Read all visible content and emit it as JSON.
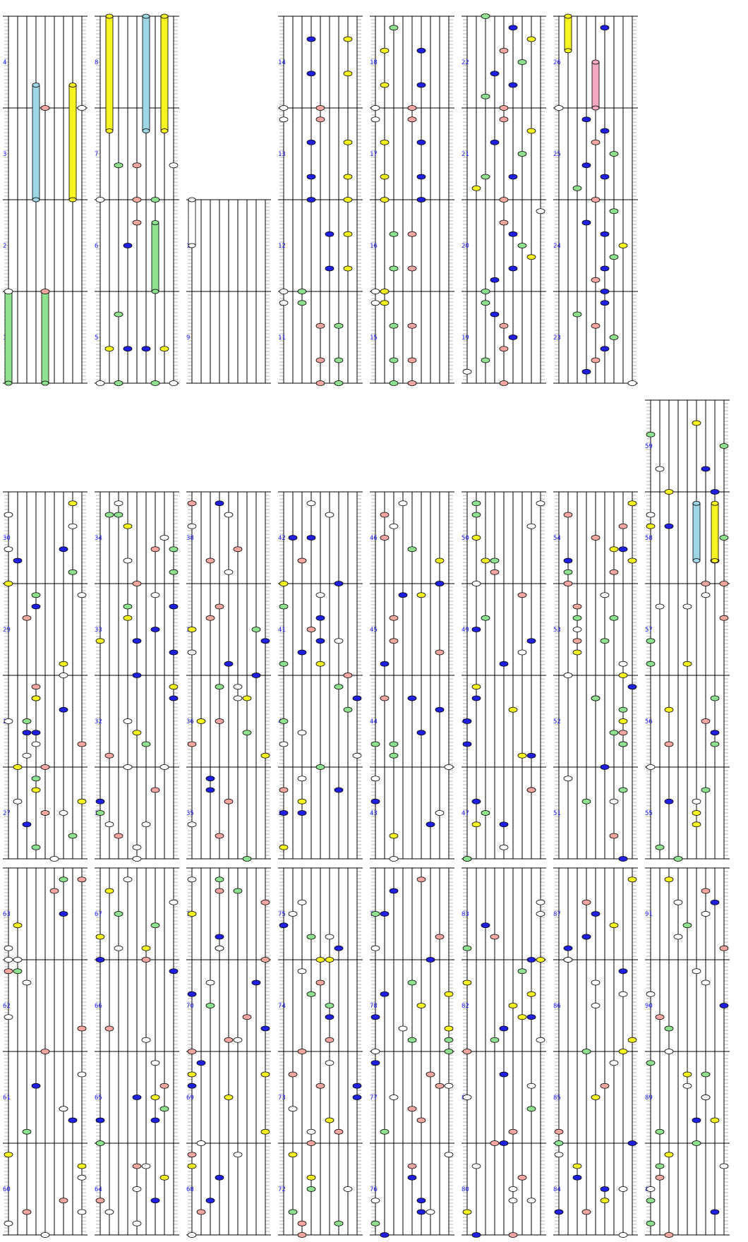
{
  "colors": {
    "background": "#ffffff",
    "string": "#000000",
    "ledger": "#b4b4b4",
    "bar_line": "#000000",
    "number": "#1a1aff",
    "white": "#ffffff",
    "pink": "#f4a6a0",
    "green": "#8fe08f",
    "blue": "#1f1fe0",
    "yellow": "#f7f31e",
    "cyan": "#9fd6e6",
    "lightpink": "#f4a8c0"
  },
  "icons": {
    "note": "oval-note-icon",
    "held": "bar-capsule-icon"
  },
  "lanes": 8,
  "steps": 8,
  "blocks": [
    {
      "bars": [
        "1",
        "2",
        "3",
        "4"
      ],
      "notes": [
        {
          "bar": 0,
          "lane": 0,
          "len": 8,
          "color": "green",
          "kind": "hold"
        },
        {
          "bar": 0,
          "lane": 4,
          "len": 8,
          "color": "green",
          "kind": "hold"
        },
        {
          "bar": 1,
          "lane": 0,
          "step": 0,
          "color": "white"
        },
        {
          "bar": 1,
          "lane": 4,
          "step": 0,
          "color": "pink"
        },
        {
          "bar": 2,
          "lane": 3,
          "len": 10,
          "color": "cyan",
          "kind": "hold"
        },
        {
          "bar": 2,
          "lane": 7,
          "len": 10,
          "color": "yellow",
          "kind": "hold"
        },
        {
          "bar": 3,
          "lane": 4,
          "step": 0,
          "color": "pink"
        },
        {
          "bar": 3,
          "lane": 8,
          "step": 0,
          "color": "white"
        }
      ]
    },
    {
      "bars": [
        "5",
        "6",
        "7",
        "8"
      ],
      "notes": [
        {
          "bar": 0,
          "lane": 0,
          "step": 0,
          "color": "white"
        },
        {
          "bar": 0,
          "lane": 2,
          "step": 0,
          "color": "green"
        },
        {
          "bar": 0,
          "lane": 6,
          "step": 0,
          "color": "green"
        },
        {
          "bar": 0,
          "lane": 8,
          "step": 0,
          "color": "white"
        },
        {
          "bar": 0,
          "lane": 1,
          "step": 3,
          "color": "yellow"
        },
        {
          "bar": 0,
          "lane": 3,
          "step": 3,
          "color": "blue"
        },
        {
          "bar": 0,
          "lane": 5,
          "step": 3,
          "color": "blue"
        },
        {
          "bar": 0,
          "lane": 7,
          "step": 3,
          "color": "yellow"
        },
        {
          "bar": 0,
          "lane": 2,
          "step": 6,
          "color": "green"
        },
        {
          "bar": 1,
          "lane": 6,
          "len": 6,
          "color": "green",
          "kind": "hold"
        },
        {
          "bar": 1,
          "lane": 3,
          "step": 4,
          "color": "blue"
        },
        {
          "bar": 1,
          "lane": 4,
          "step": 6,
          "color": "pink"
        },
        {
          "bar": 2,
          "lane": 0,
          "step": 0,
          "color": "white"
        },
        {
          "bar": 2,
          "lane": 4,
          "step": 0,
          "color": "pink"
        },
        {
          "bar": 2,
          "lane": 6,
          "step": 0,
          "color": "green"
        },
        {
          "bar": 2,
          "lane": 2,
          "step": 3,
          "color": "green"
        },
        {
          "bar": 2,
          "lane": 4,
          "step": 3,
          "color": "pink"
        },
        {
          "bar": 2,
          "lane": 8,
          "step": 3,
          "color": "white"
        },
        {
          "bar": 2,
          "lane": 5,
          "len": 10,
          "color": "cyan",
          "kind": "hold",
          "from": 6
        },
        {
          "bar": 2,
          "lane": 7,
          "len": 10,
          "color": "yellow",
          "kind": "hold",
          "from": 6
        },
        {
          "bar": 3,
          "lane": 1,
          "len": 10,
          "color": "yellow",
          "kind": "hold",
          "from": -2
        }
      ]
    },
    {
      "bars": [
        "9",
        "10",
        "",
        ""
      ],
      "notes": [
        {
          "bar": 1,
          "lane": 0,
          "len": 4,
          "color": "white",
          "kind": "hold",
          "from": 4
        }
      ]
    },
    {
      "bars": [
        "11",
        "12",
        "13",
        "14"
      ],
      "notes": [
        {
          "bar": 0,
          "lane": 4,
          "step": 0,
          "color": "pink"
        },
        {
          "bar": 0,
          "lane": 6,
          "step": 0,
          "color": "green"
        },
        {
          "bar": 0,
          "lane": 4,
          "step": 2,
          "color": "pink"
        },
        {
          "bar": 0,
          "lane": 6,
          "step": 2,
          "color": "green"
        },
        {
          "bar": 0,
          "lane": 4,
          "step": 5,
          "color": "pink"
        },
        {
          "bar": 0,
          "lane": 6,
          "step": 5,
          "color": "green"
        },
        {
          "bar": 0,
          "lane": 0,
          "step": 7,
          "color": "white"
        },
        {
          "bar": 0,
          "lane": 2,
          "step": 7,
          "color": "green"
        },
        {
          "bar": 1,
          "lane": 0,
          "step": 0,
          "color": "white"
        },
        {
          "bar": 1,
          "lane": 2,
          "step": 0,
          "color": "green"
        },
        {
          "bar": 1,
          "lane": 5,
          "step": 2,
          "color": "blue"
        },
        {
          "bar": 1,
          "lane": 7,
          "step": 2,
          "color": "yellow"
        },
        {
          "bar": 1,
          "lane": 5,
          "step": 5,
          "color": "blue"
        },
        {
          "bar": 1,
          "lane": 7,
          "step": 5,
          "color": "yellow"
        },
        {
          "bar": 2,
          "lane": 3,
          "step": 0,
          "color": "blue"
        },
        {
          "bar": 2,
          "lane": 7,
          "step": 0,
          "color": "yellow"
        },
        {
          "bar": 2,
          "lane": 3,
          "step": 2,
          "color": "blue"
        },
        {
          "bar": 2,
          "lane": 7,
          "step": 2,
          "color": "yellow"
        },
        {
          "bar": 2,
          "lane": 3,
          "step": 5,
          "color": "blue"
        },
        {
          "bar": 2,
          "lane": 7,
          "step": 5,
          "color": "yellow"
        },
        {
          "bar": 2,
          "lane": 0,
          "step": 7,
          "color": "white"
        },
        {
          "bar": 2,
          "lane": 4,
          "step": 7,
          "color": "pink"
        },
        {
          "bar": 3,
          "lane": 0,
          "step": 0,
          "color": "white"
        },
        {
          "bar": 3,
          "lane": 4,
          "step": 0,
          "color": "pink"
        },
        {
          "bar": 3,
          "lane": 3,
          "step": 3,
          "color": "blue"
        },
        {
          "bar": 3,
          "lane": 7,
          "step": 3,
          "color": "yellow"
        },
        {
          "bar": 3,
          "lane": 3,
          "step": 6,
          "color": "blue"
        },
        {
          "bar": 3,
          "lane": 7,
          "step": 6,
          "color": "yellow"
        }
      ]
    },
    {
      "bars": [
        "15",
        "16",
        "17",
        "18"
      ],
      "notes": [
        {
          "bar": 0,
          "lane": 2,
          "step": 0,
          "color": "green"
        },
        {
          "bar": 0,
          "lane": 4,
          "step": 0,
          "color": "pink"
        },
        {
          "bar": 0,
          "lane": 2,
          "step": 2,
          "color": "green"
        },
        {
          "bar": 0,
          "lane": 4,
          "step": 2,
          "color": "pink"
        },
        {
          "bar": 0,
          "lane": 2,
          "step": 5,
          "color": "green"
        },
        {
          "bar": 0,
          "lane": 4,
          "step": 5,
          "color": "pink"
        },
        {
          "bar": 0,
          "lane": 0,
          "step": 7,
          "color": "white"
        },
        {
          "bar": 0,
          "lane": 1,
          "step": 7,
          "color": "yellow"
        },
        {
          "bar": 1,
          "lane": 0,
          "step": 0,
          "color": "white"
        },
        {
          "bar": 1,
          "lane": 1,
          "step": 0,
          "color": "yellow"
        },
        {
          "bar": 1,
          "lane": 2,
          "step": 2,
          "color": "green"
        },
        {
          "bar": 1,
          "lane": 4,
          "step": 2,
          "color": "pink"
        },
        {
          "bar": 1,
          "lane": 2,
          "step": 5,
          "color": "green"
        },
        {
          "bar": 1,
          "lane": 4,
          "step": 5,
          "color": "pink"
        },
        {
          "bar": 2,
          "lane": 1,
          "step": 0,
          "color": "yellow"
        },
        {
          "bar": 2,
          "lane": 5,
          "step": 0,
          "color": "blue"
        },
        {
          "bar": 2,
          "lane": 1,
          "step": 2,
          "color": "yellow"
        },
        {
          "bar": 2,
          "lane": 5,
          "step": 2,
          "color": "blue"
        },
        {
          "bar": 2,
          "lane": 1,
          "step": 5,
          "color": "yellow"
        },
        {
          "bar": 2,
          "lane": 5,
          "step": 5,
          "color": "blue"
        },
        {
          "bar": 2,
          "lane": 0,
          "step": 7,
          "color": "white"
        },
        {
          "bar": 2,
          "lane": 4,
          "step": 7,
          "color": "pink"
        },
        {
          "bar": 3,
          "lane": 0,
          "step": 0,
          "color": "white"
        },
        {
          "bar": 3,
          "lane": 4,
          "step": 0,
          "color": "pink"
        },
        {
          "bar": 3,
          "lane": 1,
          "step": 2,
          "color": "yellow"
        },
        {
          "bar": 3,
          "lane": 5,
          "step": 2,
          "color": "blue"
        },
        {
          "bar": 3,
          "lane": 1,
          "step": 5,
          "color": "yellow"
        },
        {
          "bar": 3,
          "lane": 5,
          "step": 5,
          "color": "blue"
        },
        {
          "bar": 3,
          "lane": 2,
          "step": 7,
          "color": "green"
        }
      ]
    },
    {
      "bars": [
        "19",
        "20",
        "21",
        "22"
      ],
      "notes": [
        {
          "bar": 0,
          "lane": 4,
          "step": 0,
          "color": "pink"
        },
        {
          "bar": 0,
          "lane": 0,
          "step": 1,
          "color": "white"
        },
        {
          "bar": 0,
          "lane": 2,
          "step": 2,
          "color": "green"
        },
        {
          "bar": 0,
          "lane": 4,
          "step": 3,
          "color": "pink"
        },
        {
          "bar": 0,
          "lane": 5,
          "step": 4,
          "color": "blue"
        },
        {
          "bar": 0,
          "lane": 4,
          "step": 5,
          "color": "pink"
        },
        {
          "bar": 0,
          "lane": 3,
          "step": 6,
          "color": "blue"
        },
        {
          "bar": 0,
          "lane": 2,
          "step": 7,
          "color": "green"
        },
        {
          "bar": 1,
          "lane": 2,
          "step": 0,
          "color": "green"
        },
        {
          "bar": 1,
          "lane": 3,
          "step": 1,
          "color": "blue"
        },
        {
          "bar": 1,
          "lane": 5,
          "step": 2,
          "color": "blue"
        },
        {
          "bar": 1,
          "lane": 7,
          "step": 3,
          "color": "yellow"
        },
        {
          "bar": 1,
          "lane": 6,
          "step": 4,
          "color": "green"
        },
        {
          "bar": 1,
          "lane": 5,
          "step": 5,
          "color": "blue"
        },
        {
          "bar": 1,
          "lane": 4,
          "step": 6,
          "color": "pink"
        },
        {
          "bar": 1,
          "lane": 8,
          "step": 7,
          "color": "white"
        },
        {
          "bar": 2,
          "lane": 4,
          "step": 0,
          "color": "pink"
        },
        {
          "bar": 2,
          "lane": 1,
          "step": 1,
          "color": "yellow"
        },
        {
          "bar": 2,
          "lane": 2,
          "step": 2,
          "color": "green"
        },
        {
          "bar": 2,
          "lane": 5,
          "step": 2,
          "color": "blue"
        },
        {
          "bar": 2,
          "lane": 6,
          "step": 4,
          "color": "green"
        },
        {
          "bar": 2,
          "lane": 3,
          "step": 5,
          "color": "blue"
        },
        {
          "bar": 2,
          "lane": 7,
          "step": 6,
          "color": "yellow"
        },
        {
          "bar": 2,
          "lane": 4,
          "step": 7,
          "color": "pink"
        },
        {
          "bar": 3,
          "lane": 4,
          "step": 0,
          "color": "pink"
        },
        {
          "bar": 3,
          "lane": 2,
          "step": 1,
          "color": "green"
        },
        {
          "bar": 3,
          "lane": 5,
          "step": 2,
          "color": "blue"
        },
        {
          "bar": 3,
          "lane": 3,
          "step": 3,
          "color": "blue"
        },
        {
          "bar": 3,
          "lane": 6,
          "step": 4,
          "color": "green"
        },
        {
          "bar": 3,
          "lane": 4,
          "step": 5,
          "color": "pink"
        },
        {
          "bar": 3,
          "lane": 7,
          "step": 6,
          "color": "yellow"
        },
        {
          "bar": 3,
          "lane": 5,
          "step": 7,
          "color": "blue"
        },
        {
          "bar": 3,
          "lane": 2,
          "step": 8,
          "color": "green"
        }
      ]
    },
    {
      "bars": [
        "23",
        "24",
        "25",
        "26"
      ],
      "notes": [
        {
          "bar": 0,
          "lane": 8,
          "step": 0,
          "color": "white"
        },
        {
          "bar": 0,
          "lane": 3,
          "step": 1,
          "color": "blue"
        },
        {
          "bar": 0,
          "lane": 4,
          "step": 2,
          "color": "pink"
        },
        {
          "bar": 0,
          "lane": 5,
          "step": 3,
          "color": "blue"
        },
        {
          "bar": 0,
          "lane": 6,
          "step": 4,
          "color": "green"
        },
        {
          "bar": 0,
          "lane": 4,
          "step": 5,
          "color": "pink"
        },
        {
          "bar": 0,
          "lane": 2,
          "step": 6,
          "color": "green"
        },
        {
          "bar": 0,
          "lane": 5,
          "step": 7,
          "color": "blue"
        },
        {
          "bar": 1,
          "lane": 5,
          "step": 0,
          "color": "blue"
        },
        {
          "bar": 1,
          "lane": 4,
          "step": 1,
          "color": "pink"
        },
        {
          "bar": 1,
          "lane": 5,
          "step": 2,
          "color": "blue"
        },
        {
          "bar": 1,
          "lane": 6,
          "step": 3,
          "color": "green"
        },
        {
          "bar": 1,
          "lane": 7,
          "step": 4,
          "color": "yellow"
        },
        {
          "bar": 1,
          "lane": 5,
          "step": 5,
          "color": "blue"
        },
        {
          "bar": 1,
          "lane": 3,
          "step": 6,
          "color": "blue"
        },
        {
          "bar": 1,
          "lane": 6,
          "step": 7,
          "color": "green"
        },
        {
          "bar": 2,
          "lane": 4,
          "step": 0,
          "color": "pink"
        },
        {
          "bar": 2,
          "lane": 2,
          "step": 1,
          "color": "green"
        },
        {
          "bar": 2,
          "lane": 5,
          "step": 2,
          "color": "blue"
        },
        {
          "bar": 2,
          "lane": 3,
          "step": 3,
          "color": "blue"
        },
        {
          "bar": 2,
          "lane": 6,
          "step": 4,
          "color": "green"
        },
        {
          "bar": 2,
          "lane": 4,
          "step": 5,
          "color": "pink"
        },
        {
          "bar": 2,
          "lane": 5,
          "step": 6,
          "color": "blue"
        },
        {
          "bar": 2,
          "lane": 3,
          "step": 7,
          "color": "blue"
        },
        {
          "bar": 3,
          "lane": 0,
          "step": 0,
          "color": "white"
        },
        {
          "bar": 3,
          "lane": 4,
          "len": 4,
          "color": "lightpink",
          "kind": "hold",
          "from": 0
        },
        {
          "bar": 3,
          "lane": 1,
          "len": 3,
          "color": "yellow",
          "kind": "hold",
          "from": 5
        },
        {
          "bar": 3,
          "lane": 5,
          "step": 7,
          "color": "blue"
        }
      ]
    }
  ],
  "block2": [
    {
      "bars": [
        "27",
        "28",
        "29",
        "30"
      ]
    },
    {
      "bars": [
        "31",
        "32",
        "33",
        "34"
      ]
    },
    {
      "bars": [
        "35",
        "36",
        "37",
        "38"
      ]
    },
    {
      "bars": [
        "39",
        "40",
        "41",
        "42"
      ]
    },
    {
      "bars": [
        "43",
        "44",
        "45",
        "46"
      ]
    },
    {
      "bars": [
        "47",
        "48",
        "49",
        "50"
      ]
    },
    {
      "bars": [
        "51",
        "52",
        "53",
        "54"
      ]
    },
    {
      "bars": [
        "55",
        "56",
        "57",
        "58",
        "59"
      ]
    }
  ],
  "block3": [
    {
      "bars": [
        "60",
        "61",
        "62",
        "63"
      ]
    },
    {
      "bars": [
        "64",
        "65",
        "66",
        "67"
      ]
    },
    {
      "bars": [
        "68",
        "69",
        "70",
        "71"
      ]
    },
    {
      "bars": [
        "72",
        "73",
        "74",
        "75"
      ]
    },
    {
      "bars": [
        "76",
        "77",
        "78",
        "79"
      ]
    },
    {
      "bars": [
        "80",
        "81",
        "82",
        "83"
      ]
    },
    {
      "bars": [
        "84",
        "85",
        "86",
        "87"
      ]
    },
    {
      "bars": [
        "88",
        "89",
        "90",
        "91"
      ]
    }
  ]
}
